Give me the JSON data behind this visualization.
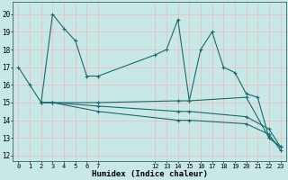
{
  "xlabel": "Humidex (Indice chaleur)",
  "xlim": [
    -0.5,
    23.5
  ],
  "ylim": [
    11.7,
    20.7
  ],
  "yticks": [
    12,
    13,
    14,
    15,
    16,
    17,
    18,
    19,
    20
  ],
  "xticks": [
    0,
    1,
    2,
    3,
    4,
    5,
    6,
    7,
    12,
    13,
    14,
    15,
    16,
    17,
    18,
    19,
    20,
    21,
    22,
    23
  ],
  "bg_color": "#c8e8e8",
  "line_color": "#1a6b6b",
  "grid_color": "#f0b8b8",
  "lines": [
    {
      "x": [
        0,
        1,
        2,
        3,
        4,
        5,
        6,
        7,
        12,
        13,
        14,
        15,
        16,
        17,
        18,
        19,
        20,
        21,
        22,
        23
      ],
      "y": [
        17,
        16,
        15,
        20,
        19.2,
        18.5,
        16.5,
        16.5,
        17.7,
        18.0,
        19.7,
        15.1,
        18.0,
        19.0,
        17.0,
        16.7,
        15.5,
        15.3,
        13.0,
        12.5
      ]
    },
    {
      "x": [
        2,
        3,
        7,
        14,
        15,
        20,
        22,
        23
      ],
      "y": [
        15.0,
        15.0,
        15.0,
        15.1,
        15.1,
        15.3,
        13.0,
        12.5
      ]
    },
    {
      "x": [
        2,
        3,
        7,
        14,
        15,
        20,
        22,
        23
      ],
      "y": [
        15.0,
        15.0,
        14.8,
        14.5,
        14.5,
        14.2,
        13.5,
        12.5
      ]
    },
    {
      "x": [
        2,
        3,
        7,
        14,
        15,
        20,
        22,
        23
      ],
      "y": [
        15.0,
        15.0,
        14.5,
        14.0,
        14.0,
        13.8,
        13.2,
        12.3
      ]
    }
  ]
}
